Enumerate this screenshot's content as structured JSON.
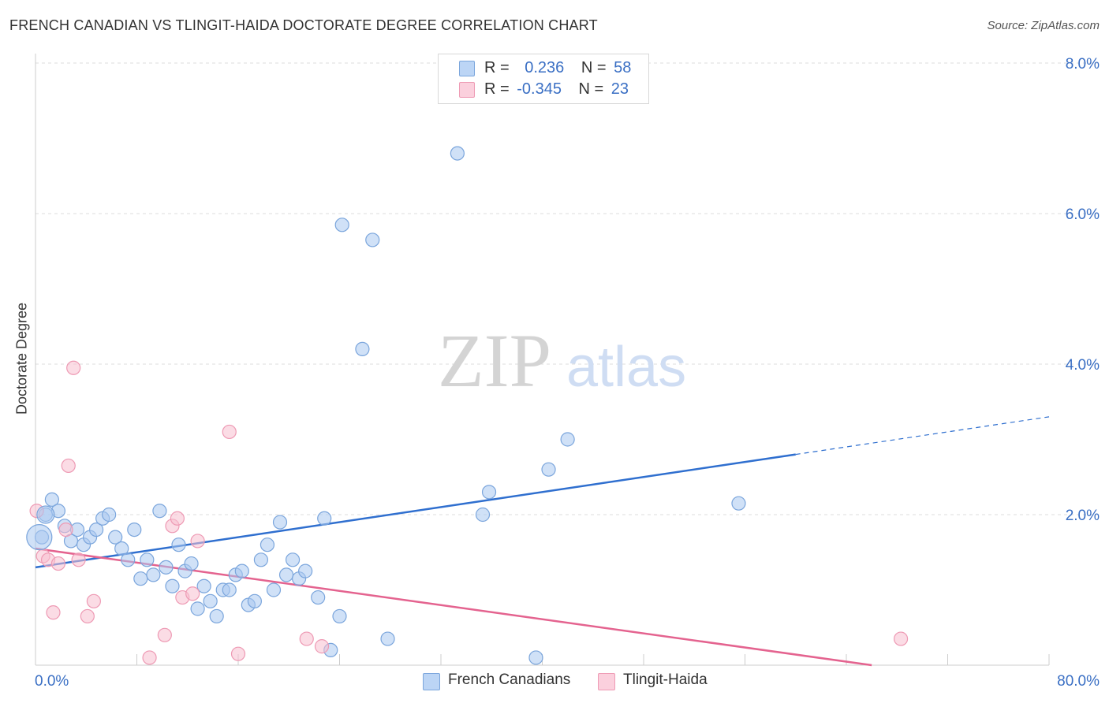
{
  "header": {
    "title": "FRENCH CANADIAN VS TLINGIT-HAIDA DOCTORATE DEGREE CORRELATION CHART",
    "source": "Source: ZipAtlas.com"
  },
  "watermark": {
    "zip": "ZIP",
    "atlas": "atlas"
  },
  "legend": {
    "rows": [
      {
        "r_label": "R =",
        "r_value": "0.236",
        "n_label": "N =",
        "n_value": "58"
      },
      {
        "r_label": "R =",
        "r_value": "-0.345",
        "n_label": "N =",
        "n_value": "23"
      }
    ]
  },
  "bottom_legend": [
    {
      "label": "French Canadians"
    },
    {
      "label": "Tlingit-Haida"
    }
  ],
  "colors": {
    "blue_fill": "#aac8f0",
    "blue_stroke": "#7aa5dc",
    "blue_line": "#2f6fcf",
    "pink_fill": "#f7bfd0",
    "pink_stroke": "#ee9ab4",
    "pink_line": "#e4638f",
    "axis_text": "#3a6fc4",
    "grid": "#dddddd"
  },
  "chart_data": {
    "type": "scatter",
    "title": "FRENCH CANADIAN VS TLINGIT-HAIDA DOCTORATE DEGREE CORRELATION CHART",
    "xlabel": "",
    "ylabel": "Doctorate Degree",
    "xlim": [
      0,
      80
    ],
    "ylim": [
      0,
      8
    ],
    "x_tick_labels": [
      "0.0%",
      "80.0%"
    ],
    "y_ticks": [
      2,
      4,
      6,
      8
    ],
    "y_tick_labels": [
      "2.0%",
      "4.0%",
      "6.0%",
      "8.0%"
    ],
    "grid": true,
    "series": [
      {
        "name": "French Canadians",
        "r": 0.236,
        "n": 58,
        "trend": {
          "x0": 0,
          "y0": 1.3,
          "x1": 60,
          "y1": 2.8,
          "dashed_to_x": 80,
          "dashed_to_y": 3.3
        },
        "points": [
          [
            0.5,
            1.7
          ],
          [
            0.8,
            2.0
          ],
          [
            1.3,
            2.2
          ],
          [
            1.8,
            2.05
          ],
          [
            2.3,
            1.85
          ],
          [
            2.8,
            1.65
          ],
          [
            3.3,
            1.8
          ],
          [
            3.8,
            1.6
          ],
          [
            4.3,
            1.7
          ],
          [
            4.8,
            1.8
          ],
          [
            5.3,
            1.95
          ],
          [
            5.8,
            2.0
          ],
          [
            6.3,
            1.7
          ],
          [
            6.8,
            1.55
          ],
          [
            7.3,
            1.4
          ],
          [
            7.8,
            1.8
          ],
          [
            8.3,
            1.15
          ],
          [
            8.8,
            1.4
          ],
          [
            9.3,
            1.2
          ],
          [
            9.8,
            2.05
          ],
          [
            10.3,
            1.3
          ],
          [
            10.8,
            1.05
          ],
          [
            11.3,
            1.6
          ],
          [
            11.8,
            1.25
          ],
          [
            12.3,
            1.35
          ],
          [
            12.8,
            0.75
          ],
          [
            13.3,
            1.05
          ],
          [
            13.8,
            0.85
          ],
          [
            14.3,
            0.65
          ],
          [
            14.8,
            1.0
          ],
          [
            15.3,
            1.0
          ],
          [
            15.8,
            1.2
          ],
          [
            16.3,
            1.25
          ],
          [
            16.8,
            0.8
          ],
          [
            17.3,
            0.85
          ],
          [
            17.8,
            1.4
          ],
          [
            18.3,
            1.6
          ],
          [
            18.8,
            1.0
          ],
          [
            19.3,
            1.9
          ],
          [
            19.8,
            1.2
          ],
          [
            20.3,
            1.4
          ],
          [
            20.8,
            1.15
          ],
          [
            21.3,
            1.25
          ],
          [
            22.3,
            0.9
          ],
          [
            22.8,
            1.95
          ],
          [
            23.3,
            0.2
          ],
          [
            24.0,
            0.65
          ],
          [
            24.2,
            5.85
          ],
          [
            25.8,
            4.2
          ],
          [
            26.6,
            5.65
          ],
          [
            27.8,
            0.35
          ],
          [
            33.3,
            6.8
          ],
          [
            35.3,
            2.0
          ],
          [
            35.8,
            2.3
          ],
          [
            39.5,
            0.1
          ],
          [
            40.5,
            2.6
          ],
          [
            42.0,
            3.0
          ],
          [
            55.5,
            2.15
          ]
        ]
      },
      {
        "name": "Tlingit-Haida",
        "r": -0.345,
        "n": 23,
        "trend": {
          "x0": 0,
          "y0": 1.55,
          "x1": 66,
          "y1": 0.0
        },
        "points": [
          [
            0.1,
            2.05
          ],
          [
            0.6,
            1.45
          ],
          [
            1.0,
            1.4
          ],
          [
            1.4,
            0.7
          ],
          [
            1.8,
            1.35
          ],
          [
            2.4,
            1.8
          ],
          [
            2.6,
            2.65
          ],
          [
            3.0,
            3.95
          ],
          [
            3.4,
            1.4
          ],
          [
            4.1,
            0.65
          ],
          [
            4.6,
            0.85
          ],
          [
            9.0,
            0.1
          ],
          [
            10.2,
            0.4
          ],
          [
            10.8,
            1.85
          ],
          [
            11.2,
            1.95
          ],
          [
            11.6,
            0.9
          ],
          [
            12.4,
            0.95
          ],
          [
            12.8,
            1.65
          ],
          [
            15.3,
            3.1
          ],
          [
            16.0,
            0.15
          ],
          [
            21.4,
            0.35
          ],
          [
            22.6,
            0.25
          ],
          [
            68.3,
            0.35
          ]
        ]
      }
    ],
    "bubbles": {
      "large_points": [
        [
          0.3,
          1.7,
          "French Canadians"
        ],
        [
          0.8,
          2.0,
          "French Canadians"
        ]
      ]
    }
  }
}
